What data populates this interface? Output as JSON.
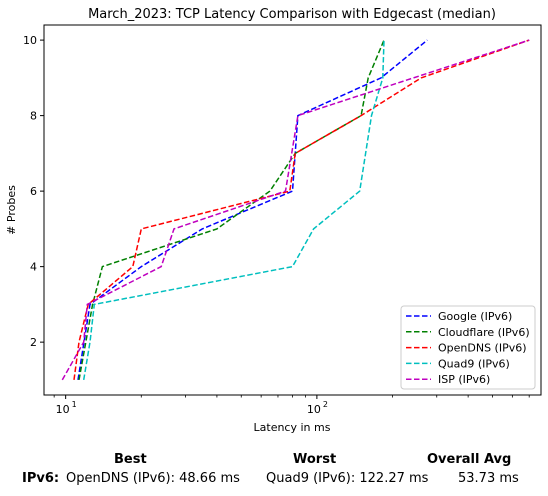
{
  "chart_data": {
    "type": "line",
    "title": "March_2023: TCP Latency Comparison with Edgecast (median)",
    "xlabel": "Latency in ms",
    "ylabel": "# Probes",
    "xscale": "log",
    "xlim": [
      8.2,
      780
    ],
    "ylim": [
      0.6,
      10.4
    ],
    "yticks": [
      2,
      4,
      6,
      8,
      10
    ],
    "xtick_labels": [
      "10",
      "10",
      "10"
    ],
    "xtick_exponents": [
      "1",
      "2",
      "",
      ""
    ],
    "grid": false,
    "legend_position": "lower-right",
    "series": [
      {
        "name": "Google (IPv6)",
        "color": "#0000ff",
        "x": [
          11.2,
          12.5,
          20,
          35,
          80,
          84,
          180,
          275
        ],
        "y": [
          1,
          3,
          4,
          5,
          6,
          8,
          9,
          10
        ]
      },
      {
        "name": "Cloudflare (IPv6)",
        "color": "#008000",
        "x": [
          11.3,
          12.8,
          14,
          40,
          65,
          82,
          150,
          160,
          185
        ],
        "y": [
          1,
          3,
          4,
          5,
          6,
          7,
          8,
          9,
          10
        ]
      },
      {
        "name": "OpenDNS (IPv6)",
        "color": "#ff0000",
        "x": [
          10.8,
          11.3,
          12.3,
          18.5,
          20,
          78,
          82,
          150,
          260,
          700
        ],
        "y": [
          1,
          2,
          3,
          4,
          5,
          6,
          7,
          8,
          9,
          10
        ]
      },
      {
        "name": "Quad9 (IPv6)",
        "color": "#00bfbf",
        "x": [
          11.8,
          12.5,
          13,
          80,
          97,
          148,
          165,
          183,
          185
        ],
        "y": [
          1,
          2,
          3,
          4,
          5,
          6,
          8,
          9,
          10
        ]
      },
      {
        "name": "ISP (IPv6)",
        "color": "#bf00bf",
        "x": [
          9.7,
          11.8,
          12.2,
          24,
          27,
          75,
          84,
          700
        ],
        "y": [
          1,
          2,
          3,
          4,
          5,
          6,
          8,
          10
        ]
      }
    ]
  },
  "summary": {
    "best_header": "Best",
    "worst_header": "Worst",
    "avg_header": "Overall Avg",
    "row_label": "IPv6",
    "row_colon": ":",
    "best_value": "OpenDNS (IPv6): 48.66 ms",
    "worst_value": "Quad9 (IPv6): 122.27 ms",
    "avg_value": "53.73 ms"
  }
}
